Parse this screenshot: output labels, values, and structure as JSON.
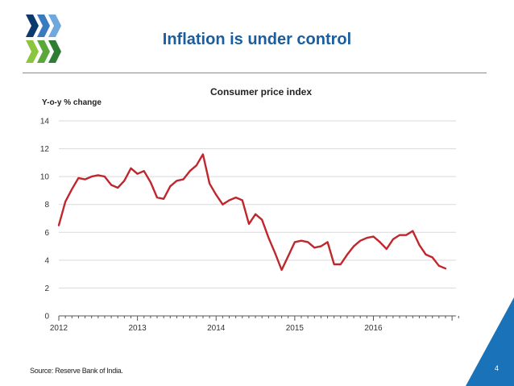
{
  "slide": {
    "title": "Inflation is under control",
    "source": "Source: Reserve Bank of India.",
    "page_number": "4",
    "title_color": "#1a5e9e",
    "logo_colors": [
      "#0b3b6e",
      "#3a7abf",
      "#6fa8dc",
      "#8cc63f",
      "#5aa83a",
      "#2e7d32"
    ],
    "corner_color": "#1a73b8"
  },
  "chart_data": {
    "type": "line",
    "title": "Consumer price index",
    "ylabel": "Y-o-y % change",
    "xlabel": "",
    "ylim": [
      0,
      14
    ],
    "yticks": [
      "0",
      "2",
      "4",
      "6",
      "8",
      "10",
      "12",
      "14"
    ],
    "xlim": [
      2012,
      2017.05
    ],
    "xticks": [
      "2012",
      "2013",
      "2014",
      "2015",
      "2016"
    ],
    "grid": "horizontal",
    "line_color": "#c0272d",
    "series": [
      {
        "name": "Consumer price index",
        "x": [
          2012.0,
          2012.083,
          2012.167,
          2012.25,
          2012.333,
          2012.417,
          2012.5,
          2012.583,
          2012.667,
          2012.75,
          2012.833,
          2012.917,
          2013.0,
          2013.083,
          2013.167,
          2013.25,
          2013.333,
          2013.417,
          2013.5,
          2013.583,
          2013.667,
          2013.75,
          2013.833,
          2013.917,
          2014.0,
          2014.083,
          2014.167,
          2014.25,
          2014.333,
          2014.417,
          2014.5,
          2014.583,
          2014.667,
          2014.75,
          2014.833,
          2014.917,
          2015.0,
          2015.083,
          2015.167,
          2015.25,
          2015.333,
          2015.417,
          2015.5,
          2015.583,
          2015.667,
          2015.75,
          2015.833,
          2015.917,
          2016.0,
          2016.083,
          2016.167,
          2016.25,
          2016.333,
          2016.417,
          2016.5,
          2016.583,
          2016.667,
          2016.75,
          2016.833,
          2016.917
        ],
        "values": [
          6.5,
          8.2,
          9.1,
          9.9,
          9.8,
          10.0,
          10.1,
          10.0,
          9.4,
          9.2,
          9.7,
          10.6,
          10.2,
          10.4,
          9.6,
          8.5,
          8.4,
          9.3,
          9.7,
          9.8,
          10.4,
          10.8,
          11.6,
          9.5,
          8.7,
          8.0,
          8.3,
          8.5,
          8.3,
          6.6,
          7.3,
          6.9,
          5.6,
          4.5,
          3.3,
          4.3,
          5.3,
          5.4,
          5.3,
          4.9,
          5.0,
          5.3,
          3.7,
          3.7,
          4.4,
          5.0,
          5.4,
          5.6,
          5.7,
          5.3,
          4.8,
          5.5,
          5.8,
          5.8,
          6.1,
          5.1,
          4.4,
          4.2,
          3.6,
          3.4
        ]
      }
    ]
  }
}
